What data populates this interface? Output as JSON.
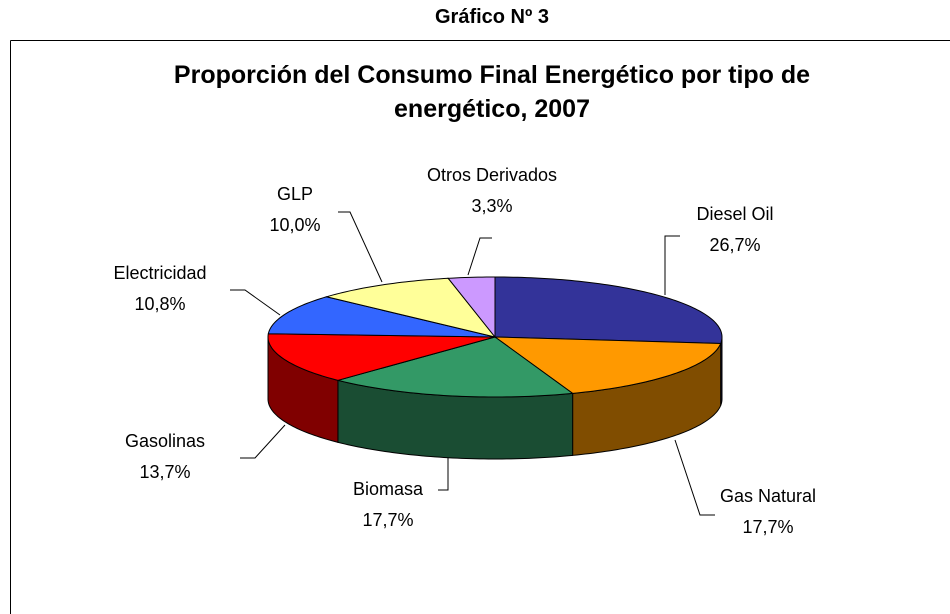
{
  "header": "Gráfico Nº 3",
  "chart_data": {
    "type": "pie",
    "title": "Proporción del Consumo Final Energético por tipo de energético, 2007",
    "categories": [
      "Diesel Oil",
      "Gas Natural",
      "Biomasa",
      "Gasolinas",
      "Electricidad",
      "GLP",
      "Otros Derivados"
    ],
    "values": [
      26.7,
      17.7,
      17.7,
      13.7,
      10.8,
      10.0,
      3.3
    ],
    "value_labels": [
      "26,7%",
      "17,7%",
      "17,7%",
      "13,7%",
      "10,8%",
      "10,0%",
      "3,3%"
    ],
    "colors": [
      "#333399",
      "#ff9900",
      "#339966",
      "#ff0000",
      "#3366ff",
      "#ffff99",
      "#cc99ff"
    ]
  }
}
